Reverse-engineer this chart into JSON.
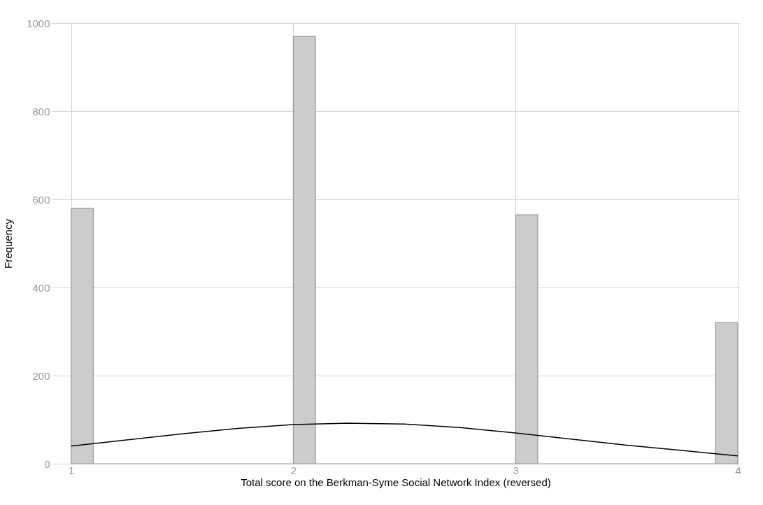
{
  "chart_data": {
    "type": "histogram",
    "xlabel": "Total score on the Berkman-Syme Social Network Index (reversed)",
    "ylabel": "Frequency",
    "bins": [
      1.0,
      1.1,
      1.2,
      1.3,
      1.4,
      1.5,
      1.6,
      1.7,
      1.8,
      1.9,
      2.0,
      2.1,
      2.2,
      2.3,
      2.4,
      2.5,
      2.6,
      2.7,
      2.8,
      2.9,
      3.0,
      3.1,
      3.2,
      3.3,
      3.4,
      3.5,
      3.6,
      3.7,
      3.8,
      3.9,
      4.0
    ],
    "values": [
      580,
      0,
      0,
      0,
      0,
      0,
      0,
      0,
      0,
      0,
      970,
      0,
      0,
      0,
      0,
      0,
      0,
      0,
      0,
      0,
      565,
      0,
      0,
      0,
      0,
      0,
      0,
      0,
      0,
      320
    ],
    "color": "#cccccc",
    "series": [
      {
        "type": "line",
        "color": "#000000",
        "x": [
          1.0,
          1.25,
          1.5,
          1.75,
          2.0,
          2.25,
          2.5,
          2.75,
          3.0,
          3.25,
          3.5,
          3.75,
          4.0
        ],
        "values": [
          40,
          54,
          68,
          80,
          89,
          92,
          90,
          82,
          70,
          56,
          42,
          30,
          18
        ]
      }
    ],
    "xlim": [
      0.91,
      4.01
    ],
    "ylim": [
      0,
      1000
    ],
    "xticks": [
      1,
      2,
      3,
      4
    ],
    "yticks": [
      0,
      200,
      400,
      600,
      800,
      1000
    ],
    "grid": true
  }
}
